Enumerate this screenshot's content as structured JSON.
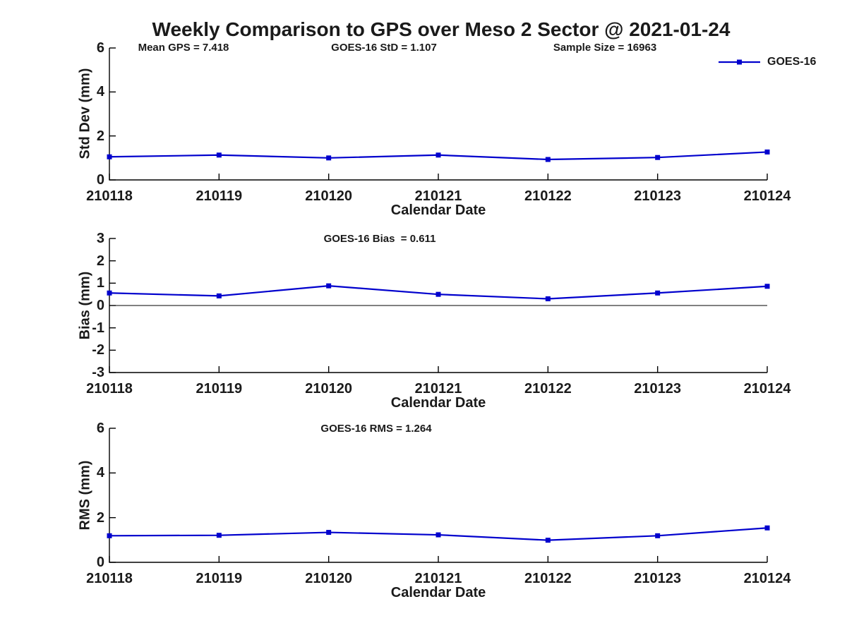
{
  "title": "Weekly Comparison to GPS over Meso 2 Sector @ 2021-01-24",
  "colors": {
    "line": "#0000CD",
    "axis": "#000000",
    "background": "#FFFFFF",
    "text": "#1A1A1A"
  },
  "chart_data": [
    {
      "type": "line",
      "title": "",
      "ylabel": "Std Dev (mm)",
      "xlabel": "Calendar Date",
      "ylim": [
        0,
        6
      ],
      "yticks": [
        0,
        2,
        4,
        6
      ],
      "grid": false,
      "categories": [
        "210118",
        "210119",
        "210120",
        "210121",
        "210122",
        "210123",
        "210124"
      ],
      "series": [
        {
          "name": "GOES-16",
          "marker": "square",
          "values": [
            1.05,
            1.13,
            1.0,
            1.13,
            0.93,
            1.02,
            1.27
          ]
        }
      ],
      "annotations": {
        "left": "Mean GPS = 7.418",
        "center": "GOES-16 StD = 1.107",
        "right": "Sample Size = 16963"
      },
      "legend": {
        "label": "GOES-16",
        "position": "top-right"
      }
    },
    {
      "type": "line",
      "title": "",
      "ylabel": "Bias (mm)",
      "xlabel": "Calendar Date",
      "ylim": [
        -3,
        3
      ],
      "yticks": [
        -3,
        -2,
        -1,
        0,
        1,
        2,
        3
      ],
      "zero_line": true,
      "grid": false,
      "categories": [
        "210118",
        "210119",
        "210120",
        "210121",
        "210122",
        "210123",
        "210124"
      ],
      "series": [
        {
          "name": "GOES-16",
          "marker": "square",
          "values": [
            0.56,
            0.43,
            0.88,
            0.5,
            0.3,
            0.56,
            0.86
          ]
        }
      ],
      "annotation": "GOES-16 Bias  = 0.611"
    },
    {
      "type": "line",
      "title": "",
      "ylabel": "RMS (mm)",
      "xlabel": "Calendar Date",
      "ylim": [
        0,
        6
      ],
      "yticks": [
        0,
        2,
        4,
        6
      ],
      "grid": false,
      "categories": [
        "210118",
        "210119",
        "210120",
        "210121",
        "210122",
        "210123",
        "210124"
      ],
      "series": [
        {
          "name": "GOES-16",
          "marker": "square",
          "values": [
            1.19,
            1.21,
            1.34,
            1.23,
            0.99,
            1.19,
            1.54
          ]
        }
      ],
      "annotation": "GOES-16 RMS = 1.264"
    }
  ]
}
